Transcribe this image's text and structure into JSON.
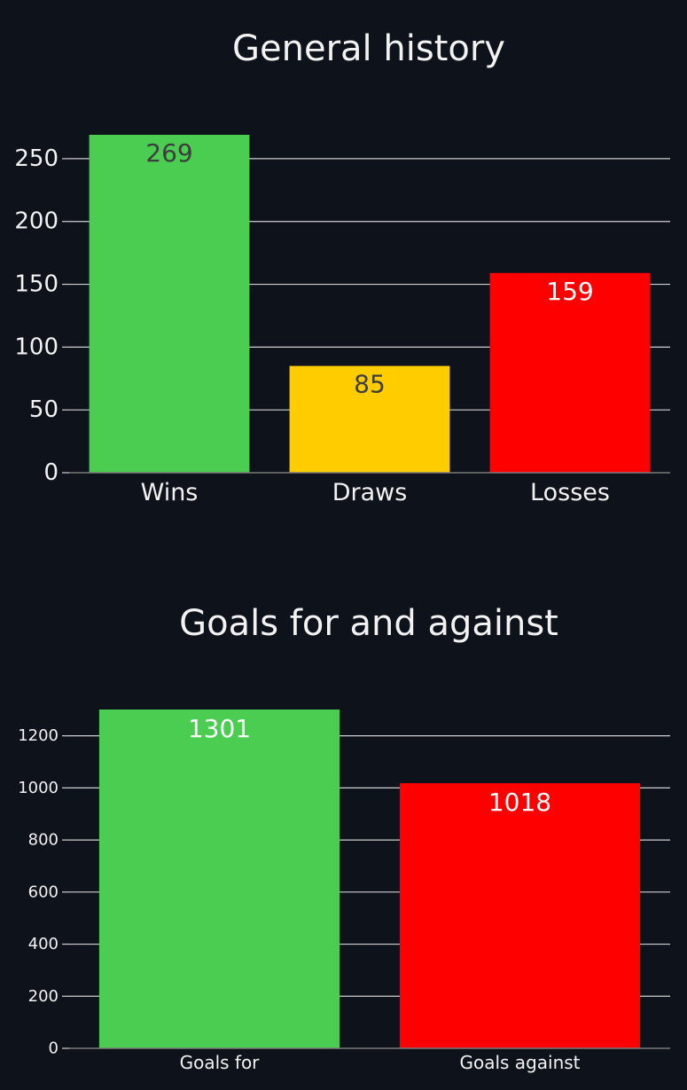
{
  "colors": {
    "background": "#0e121a",
    "text": "#f2f2f2",
    "gridline": "#d0d0d0",
    "axis": "#7a7a7a",
    "win_green": "#4acd50",
    "draw_yellow": "#ffcc00",
    "loss_red": "#ff0000",
    "dark_label": "#3d3d3d",
    "light_label": "#ffffff"
  },
  "chart_data": [
    {
      "type": "bar",
      "title": "General history",
      "categories": [
        "Wins",
        "Draws",
        "Losses"
      ],
      "values": [
        269,
        85,
        159
      ],
      "data_labels": [
        "269",
        "85",
        "159"
      ],
      "bar_colors": [
        "#4acd50",
        "#ffcc00",
        "#ff0000"
      ],
      "label_colors": [
        "#3d3d3d",
        "#3d3d3d",
        "#ffffff"
      ],
      "y_ticks": [
        0,
        50,
        100,
        150,
        200,
        250
      ],
      "y_tick_labels": [
        "0",
        "50",
        "100",
        "150",
        "200",
        "250"
      ],
      "ylim": [
        0,
        269
      ],
      "grid": true,
      "legend": "none"
    },
    {
      "type": "bar",
      "title": "Goals for and against",
      "categories": [
        "Goals for",
        "Goals against"
      ],
      "values": [
        1301,
        1018
      ],
      "data_labels": [
        "1301",
        "1018"
      ],
      "bar_colors": [
        "#4acd50",
        "#ff0000"
      ],
      "label_colors": [
        "#ffffff",
        "#ffffff"
      ],
      "y_ticks": [
        0,
        200,
        400,
        600,
        800,
        1000,
        1200
      ],
      "y_tick_labels": [
        "0",
        "200",
        "400",
        "600",
        "800",
        "1000",
        "1200"
      ],
      "ylim": [
        0,
        1301
      ],
      "grid": true,
      "legend": "none"
    }
  ]
}
